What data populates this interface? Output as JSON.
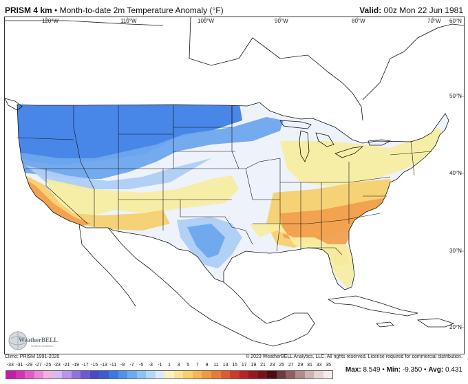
{
  "header": {
    "product": "PRISM 4 km",
    "separator": "•",
    "title": "Month-to-date 2m Temperature Anomaly (°F)",
    "valid_label": "Valid:",
    "valid_value": "00z Mon 22 Jun 1981"
  },
  "map": {
    "top_lon_labels": [
      "120°W",
      "110°W",
      "100°W",
      "90°W",
      "80°W",
      "70°W",
      "60°N"
    ],
    "right_lat_labels": [
      "50°N",
      "40°N",
      "30°N",
      "20°N"
    ],
    "colors": {
      "cold_strong": "#3f7fe6",
      "cold_mid": "#6ea6ee",
      "cold_light": "#aecdf6",
      "neutral": "#ecf1fb",
      "warm_light": "#f7eda2",
      "warm_mid": "#f7d070",
      "warm_strong": "#f2a04e",
      "hot": "#ec8040",
      "outline": "#111111"
    }
  },
  "logo": {
    "text": "WeatherBELL",
    "sub": "Weather Analytics"
  },
  "footer": {
    "climo": "Climo: PRISM 1991-2020",
    "copyright": "© 2023 WeatherBELL Analytics, LLC. All rights reserved. License required for commercial distribution."
  },
  "colorbar": {
    "labels": [
      "-33",
      "-31",
      "-29",
      "-27",
      "-25",
      "-23",
      "-21",
      "-19",
      "-17",
      "-15",
      "-13",
      "-11",
      "-9",
      "-7",
      "-5",
      "-3",
      "-1",
      "1",
      "3",
      "5",
      "7",
      "9",
      "11",
      "13",
      "15",
      "17",
      "19",
      "21",
      "23",
      "25",
      "27",
      "29",
      "31",
      "33",
      "35"
    ],
    "colors": [
      "#c71aa8",
      "#d632b8",
      "#e25ac7",
      "#ec86d6",
      "#f2b0e4",
      "#d9b7f3",
      "#b894ee",
      "#8f73e3",
      "#6d59d6",
      "#4a48c7",
      "#3a5dd2",
      "#3b78e3",
      "#4e93ea",
      "#6aabf0",
      "#8cc3f5",
      "#b2d8f9",
      "#dde9fb",
      "#fbf0c0",
      "#f8e394",
      "#f6d06a",
      "#f4b64e",
      "#f09a40",
      "#e97b36",
      "#df5b2f",
      "#cf3b29",
      "#b82424",
      "#9a1820",
      "#7a121c",
      "#4d0c12",
      "#6b3a3a",
      "#8f5f5f",
      "#b18a8a",
      "#cfb1b1",
      "#e6d3d3",
      "#f4eaea"
    ]
  },
  "stats": {
    "max_label": "Max:",
    "max_value": "8.549",
    "min_label": "Min:",
    "min_value": "-9.350",
    "avg_label": "Avg:",
    "avg_value": "0.431",
    "sep": "•"
  }
}
